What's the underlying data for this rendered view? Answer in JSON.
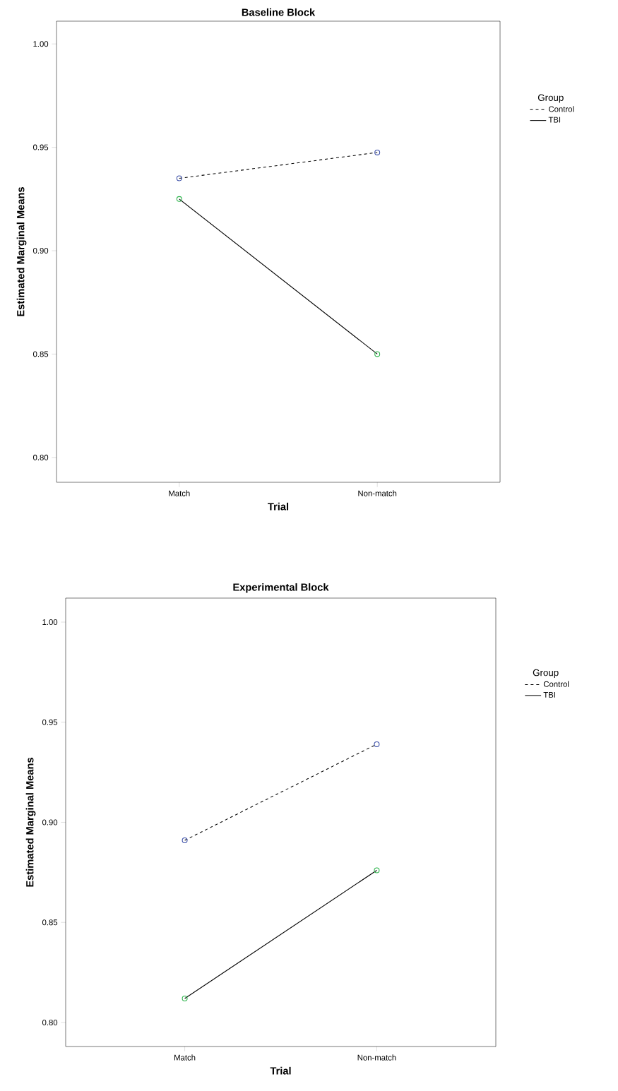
{
  "chart_data": [
    {
      "type": "line",
      "title": "Baseline Block",
      "xlabel": "Trial",
      "ylabel": "Estimated Marginal Means",
      "legend_title": "Group",
      "legend": "right",
      "marker": "circle",
      "categories": [
        "Match",
        "Non-match"
      ],
      "ylim": [
        0.788,
        1.011
      ],
      "yticks": [
        {
          "value": 0.8,
          "label": "0.80"
        },
        {
          "value": 0.85,
          "label": "0.85"
        },
        {
          "value": 0.9,
          "label": "0.90"
        },
        {
          "value": 0.95,
          "label": "0.95"
        },
        {
          "value": 1.0,
          "label": "1.00"
        }
      ],
      "series": [
        {
          "name": "Control",
          "color": "#000000",
          "colors": [
            "#3b4fa8",
            "#3b4fa8"
          ],
          "line_style": "dashed",
          "values": [
            0.935,
            0.9475
          ]
        },
        {
          "name": "TBI",
          "color": "#000000",
          "colors": [
            "#2bb34a",
            "#2bb34a"
          ],
          "line_style": "solid",
          "values": [
            0.925,
            0.85
          ]
        }
      ]
    },
    {
      "type": "line",
      "title": "Experimental Block",
      "xlabel": "Trial",
      "ylabel": "Estimated Marginal Means",
      "legend_title": "Group",
      "legend": "right",
      "marker": "circle",
      "categories": [
        "Match",
        "Non-match"
      ],
      "ylim": [
        0.788,
        1.012
      ],
      "yticks": [
        {
          "value": 0.8,
          "label": "0.80"
        },
        {
          "value": 0.85,
          "label": "0.85"
        },
        {
          "value": 0.9,
          "label": "0.90"
        },
        {
          "value": 0.95,
          "label": "0.95"
        },
        {
          "value": 1.0,
          "label": "1.00"
        }
      ],
      "series": [
        {
          "name": "Control",
          "color": "#000000",
          "colors": [
            "#3b4fa8",
            "#3b4fa8"
          ],
          "line_style": "dashed",
          "values": [
            0.891,
            0.939
          ]
        },
        {
          "name": "TBI",
          "color": "#000000",
          "colors": [
            "#2bb34a",
            "#2bb34a"
          ],
          "line_style": "solid",
          "values": [
            0.812,
            0.876
          ]
        }
      ]
    }
  ]
}
